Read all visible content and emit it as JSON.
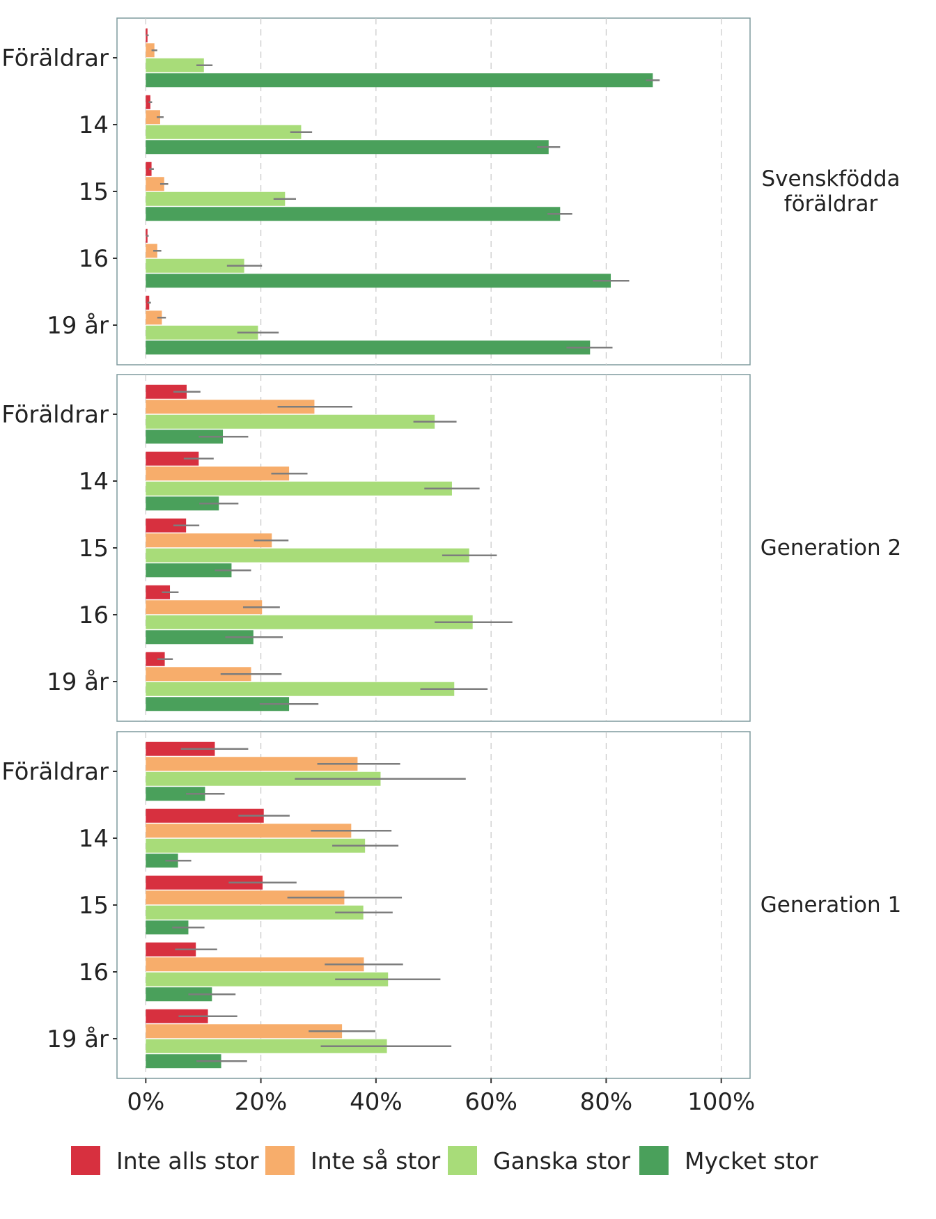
{
  "chart_data": {
    "type": "bar",
    "orientation": "horizontal",
    "x_ticks": [
      "0%",
      "20%",
      "40%",
      "60%",
      "80%",
      "100%"
    ],
    "x_tick_values": [
      0,
      20,
      40,
      60,
      80,
      100
    ],
    "xlim": [
      -5,
      105
    ],
    "grid": "vertical dashed",
    "legend_position": "bottom",
    "series": [
      {
        "name": "Inte alls stor",
        "color": "#d7303f"
      },
      {
        "name": "Inte så stor",
        "color": "#f7ad6b"
      },
      {
        "name": "Ganska stor",
        "color": "#a8dc79"
      },
      {
        "name": "Mycket stor",
        "color": "#4aa05b"
      }
    ],
    "panels": [
      {
        "label": "Svenskfödda föräldrar",
        "label_lines": [
          "Svenskfödda",
          "föräldrar"
        ],
        "groups": [
          {
            "label": "Föräldrar",
            "values": [
              0.3,
              1.5,
              10.1,
              88.1
            ],
            "err_low": [
              0.1,
              1.0,
              8.8,
              86.9
            ],
            "err_high": [
              0.5,
              2.0,
              11.6,
              89.3
            ]
          },
          {
            "label": "14",
            "values": [
              0.8,
              2.5,
              27.0,
              70.0
            ],
            "err_low": [
              0.5,
              1.9,
              25.1,
              68.0
            ],
            "err_high": [
              1.1,
              3.1,
              28.9,
              72.0
            ]
          },
          {
            "label": "15",
            "values": [
              1.0,
              3.2,
              24.2,
              72.0
            ],
            "err_low": [
              0.6,
              2.5,
              22.2,
              69.8
            ],
            "err_high": [
              1.4,
              3.9,
              26.1,
              74.1
            ]
          },
          {
            "label": "16",
            "values": [
              0.3,
              2.0,
              17.1,
              80.8
            ],
            "err_low": [
              0.1,
              1.3,
              14.1,
              77.7
            ],
            "err_high": [
              0.5,
              2.7,
              20.2,
              84.0
            ]
          },
          {
            "label": "19 år",
            "values": [
              0.6,
              2.8,
              19.5,
              77.2
            ],
            "err_low": [
              0.3,
              2.0,
              15.9,
              73.1
            ],
            "err_high": [
              0.9,
              3.5,
              23.1,
              81.1
            ]
          }
        ]
      },
      {
        "label": "Generation 2",
        "label_lines": [
          "Generation 2"
        ],
        "groups": [
          {
            "label": "Föräldrar",
            "values": [
              7.1,
              29.3,
              50.2,
              13.4
            ],
            "err_low": [
              4.8,
              22.9,
              46.5,
              9.2
            ],
            "err_high": [
              9.5,
              35.9,
              54.0,
              17.8
            ]
          },
          {
            "label": "14",
            "values": [
              9.2,
              24.9,
              53.2,
              12.7
            ],
            "err_low": [
              6.6,
              21.8,
              48.4,
              9.3
            ],
            "err_high": [
              11.8,
              28.1,
              58.0,
              16.1
            ]
          },
          {
            "label": "15",
            "values": [
              7.0,
              21.9,
              56.2,
              14.9
            ],
            "err_low": [
              4.8,
              18.8,
              51.5,
              12.0
            ],
            "err_high": [
              9.3,
              24.8,
              61.0,
              18.3
            ]
          },
          {
            "label": "16",
            "values": [
              4.2,
              20.2,
              56.8,
              18.7
            ],
            "err_low": [
              2.8,
              16.9,
              50.2,
              13.8
            ],
            "err_high": [
              5.7,
              23.3,
              63.7,
              23.8
            ]
          },
          {
            "label": "19 år",
            "values": [
              3.3,
              18.3,
              53.6,
              24.9
            ],
            "err_low": [
              2.0,
              13.0,
              47.7,
              19.8
            ],
            "err_high": [
              4.7,
              23.6,
              59.4,
              30.0
            ]
          }
        ]
      },
      {
        "label": "Generation 1",
        "label_lines": [
          "Generation 1"
        ],
        "groups": [
          {
            "label": "Föräldrar",
            "values": [
              12.0,
              36.8,
              40.8,
              10.3
            ],
            "err_low": [
              6.1,
              29.8,
              25.9,
              7.0
            ],
            "err_high": [
              17.8,
              44.2,
              55.6,
              13.7
            ]
          },
          {
            "label": "14",
            "values": [
              20.5,
              35.7,
              38.1,
              5.6
            ],
            "err_low": [
              16.1,
              28.7,
              32.4,
              3.4
            ],
            "err_high": [
              25.0,
              42.7,
              43.9,
              7.9
            ]
          },
          {
            "label": "15",
            "values": [
              20.3,
              34.5,
              37.8,
              7.4
            ],
            "err_low": [
              14.4,
              24.6,
              32.9,
              4.6
            ],
            "err_high": [
              26.2,
              44.5,
              42.9,
              10.2
            ]
          },
          {
            "label": "16",
            "values": [
              8.7,
              37.9,
              42.1,
              11.5
            ],
            "err_low": [
              5.1,
              31.1,
              32.9,
              7.4
            ],
            "err_high": [
              12.4,
              44.7,
              51.2,
              15.6
            ]
          },
          {
            "label": "19 år",
            "values": [
              10.8,
              34.1,
              41.9,
              13.1
            ],
            "err_low": [
              5.7,
              28.3,
              30.4,
              8.8
            ],
            "err_high": [
              15.9,
              39.9,
              53.1,
              17.6
            ]
          }
        ]
      }
    ]
  }
}
